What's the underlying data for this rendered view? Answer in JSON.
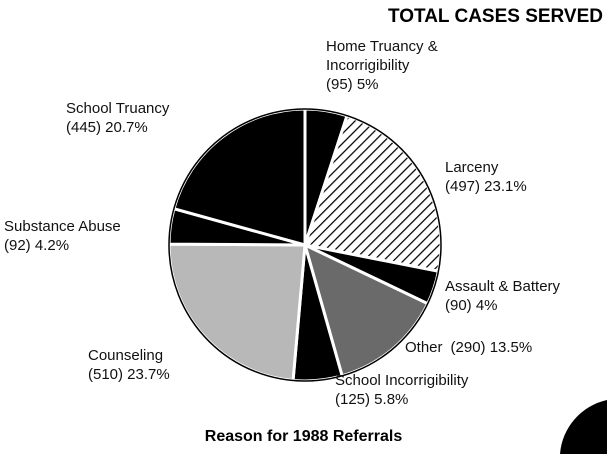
{
  "chart_data": {
    "type": "pie",
    "title": "TOTAL CASES SERVED",
    "subtitle": "Reason for 1988 Referrals",
    "categories": [
      "Home Truancy & Incorrigibility",
      "Larceny",
      "Assault & Battery",
      "Other",
      "School Incorrigibility",
      "Counseling",
      "Substance Abuse",
      "School Truancy"
    ],
    "values": [
      5,
      23.1,
      4,
      13.5,
      5.8,
      23.7,
      4.2,
      20.7
    ],
    "value_labels": [
      "(95)  5%",
      "(497) 23.1%",
      "(90)  4%",
      "(290) 13.5%",
      "(125)  5.8%",
      "(510)  23.7%",
      "(92)  4.2%",
      "(445)  20.7%"
    ],
    "colors": [
      "#000000",
      "#dcdcdc",
      "#000000",
      "#6a6a6a",
      "#000000",
      "#b8b8b8",
      "#000000",
      "#000000"
    ]
  }
}
